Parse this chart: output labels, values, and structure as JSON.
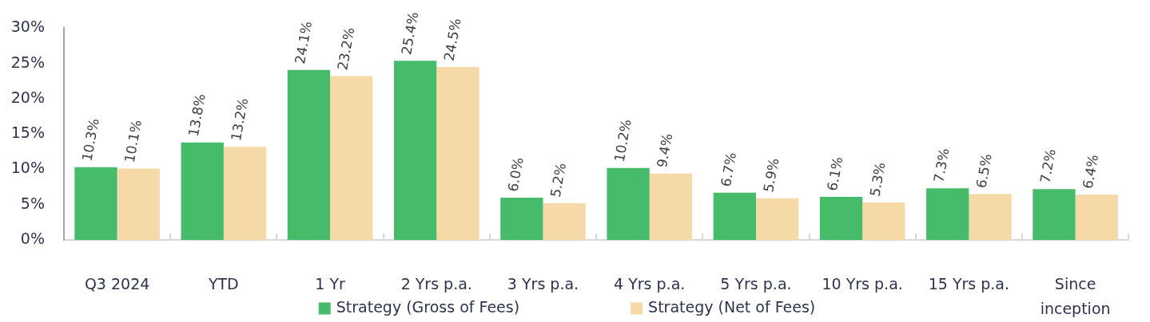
{
  "chart_data": {
    "type": "bar",
    "categories": [
      "Q3 2024",
      "YTD",
      "1 Yr",
      "2 Yrs p.a.",
      "3 Yrs p.a.",
      "4 Yrs p.a.",
      "5 Yrs p.a.",
      "10 Yrs p.a.",
      "15 Yrs p.a.",
      "Since inception"
    ],
    "series": [
      {
        "name": "Strategy (Gross of Fees)",
        "color": "#46bb6a",
        "values": [
          10.3,
          13.8,
          24.1,
          25.4,
          6.0,
          10.2,
          6.7,
          6.1,
          7.3,
          7.2
        ],
        "value_labels": [
          "10.3%",
          "13.8%",
          "24.1%",
          "25.4%",
          "6.0%",
          "10.2%",
          "6.7%",
          "6.1%",
          "7.3%",
          "7.2%"
        ]
      },
      {
        "name": "Strategy (Net of Fees)",
        "color": "#f5d9a6",
        "values": [
          10.1,
          13.2,
          23.2,
          24.5,
          5.2,
          9.4,
          5.9,
          5.3,
          6.5,
          6.4
        ],
        "value_labels": [
          "10.1%",
          "13.2%",
          "23.2%",
          "24.5%",
          "5.2%",
          "9.4%",
          "5.9%",
          "5.3%",
          "6.5%",
          "6.4%"
        ]
      }
    ],
    "ylim": [
      0,
      30
    ],
    "yticks": [
      {
        "value": 0,
        "label": "0%"
      },
      {
        "value": 5,
        "label": "5%"
      },
      {
        "value": 10,
        "label": "10%"
      },
      {
        "value": 15,
        "label": "15%"
      },
      {
        "value": 20,
        "label": "20%"
      },
      {
        "value": 25,
        "label": "25%"
      },
      {
        "value": 30,
        "label": "30%"
      }
    ],
    "grid": false,
    "legend": "bottom"
  }
}
